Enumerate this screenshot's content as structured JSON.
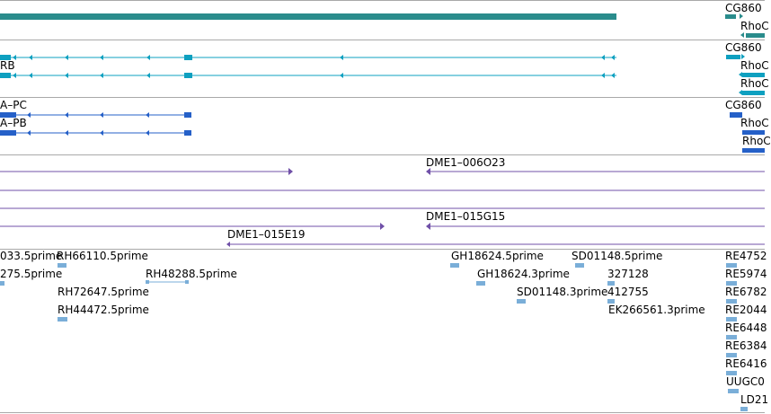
{
  "colors": {
    "teal_gene": "#2a8c8c",
    "cyan_transcript": "#0ea0c0",
    "blue_transcript": "#2560c8",
    "purple_clone": "#7050a8",
    "light_blue_est": "#7aaed8",
    "separator": "#a9a9a9",
    "text": "#000000"
  },
  "tracks": {
    "gene_track": {
      "labels": [
        "CG860",
        "RhoC"
      ]
    },
    "transcripts_cyan": {
      "labels": [
        "RB",
        "CG860",
        "RhoC",
        "RhoC"
      ]
    },
    "transcripts_blue": {
      "labels": [
        "A–PC",
        "A–PB",
        "CG860",
        "RhoC",
        "RhoC"
      ]
    },
    "clone_track": {
      "labels": [
        "DME1–006O23",
        "DME1–015G15",
        "DME1–015E19"
      ]
    },
    "est_track": {
      "labels": [
        "033.5prime",
        "RH66110.5prime",
        "GH18624.5prime",
        "SD01148.5prime",
        "RE4752",
        "275.5prime",
        "RH48288.5prime",
        "GH18624.3prime",
        "327128",
        "RE5974",
        "RH72647.5prime",
        "SD01148.3prime",
        "412755",
        "RE6782",
        "RH44472.5prime",
        "EK266561.3prime",
        "RE2044",
        "RE6448",
        "RE6384",
        "RE6416",
        "UUGC0",
        "LD21"
      ]
    }
  }
}
